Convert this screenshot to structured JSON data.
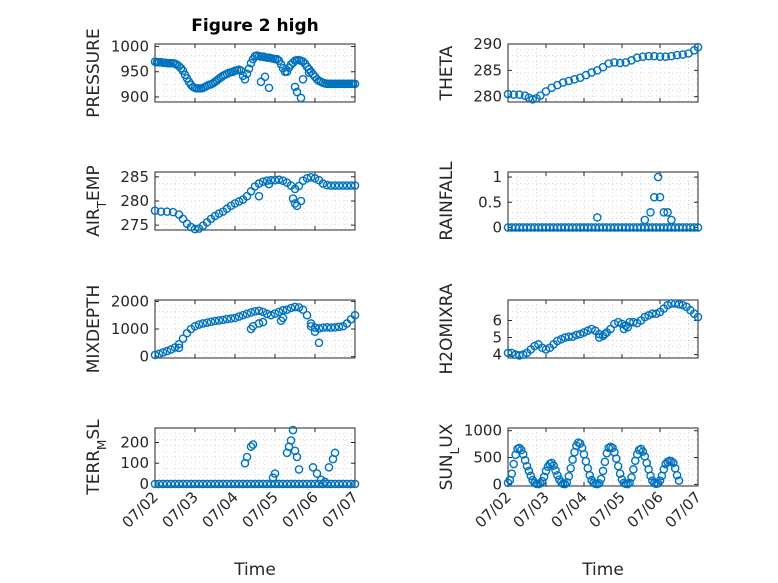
{
  "figure": {
    "title": "Figure 2 high",
    "xlabel": "Time"
  },
  "chart_data": [
    {
      "type": "scatter",
      "ylabel_main": "PRESSURE",
      "ylabel_sub": "",
      "ylim": [
        890,
        1005
      ],
      "yticks": [
        900,
        950,
        1000
      ],
      "x": [
        0.0,
        0.05,
        0.1,
        0.15,
        0.2,
        0.25,
        0.3,
        0.35,
        0.4,
        0.45,
        0.5,
        0.55,
        0.6,
        0.65,
        0.7,
        0.75,
        0.8,
        0.85,
        0.9,
        0.95,
        1.0,
        1.05,
        1.1,
        1.15,
        1.2,
        1.25,
        1.3,
        1.35,
        1.4,
        1.45,
        1.5,
        1.55,
        1.6,
        1.65,
        1.7,
        1.75,
        1.8,
        1.85,
        1.9,
        1.95,
        2.0,
        2.05,
        2.1,
        2.15,
        2.2,
        2.25,
        2.3,
        2.35,
        2.4,
        2.45,
        2.5,
        2.55,
        2.6,
        2.65,
        2.7,
        2.75,
        2.8,
        2.85,
        2.9,
        2.95,
        3.0,
        3.05,
        3.1,
        3.15,
        3.2,
        3.25,
        3.3,
        3.35,
        3.4,
        3.45,
        3.5,
        3.55,
        3.6,
        3.65,
        3.7,
        3.75,
        3.8,
        3.85,
        3.9,
        3.95,
        4.0,
        4.05,
        4.1,
        4.15,
        4.2,
        4.25,
        4.3,
        4.35,
        4.4,
        4.45,
        4.5,
        4.55,
        4.6,
        4.65,
        4.7,
        4.75,
        4.8,
        4.85,
        4.9,
        4.95,
        5.0
      ],
      "y": [
        970,
        969,
        969,
        969,
        968,
        968,
        967,
        967,
        967,
        967,
        966,
        964,
        961,
        957,
        952,
        944,
        937,
        930,
        924,
        920,
        918,
        917,
        917,
        917,
        918,
        920,
        922,
        924,
        925,
        927,
        930,
        933,
        936,
        939,
        942,
        944,
        946,
        948,
        949,
        950,
        952,
        953,
        954,
        952,
        942,
        935,
        946,
        956,
        967,
        975,
        981,
        982,
        981,
        980,
        980,
        979,
        978,
        978,
        977,
        976,
        975,
        975,
        972,
        965,
        957,
        950,
        950,
        958,
        964,
        968,
        972,
        973,
        973,
        972,
        970,
        966,
        960,
        955,
        950,
        945,
        940,
        935,
        932,
        930,
        928,
        927,
        926,
        926,
        926,
        926,
        926,
        926,
        926,
        926,
        926,
        926,
        926,
        926,
        926,
        926,
        926
      ],
      "x_extra": [
        2.65,
        2.75,
        2.85,
        3.5,
        3.55,
        3.65,
        3.7,
        3.85
      ],
      "y_extra": [
        930,
        940,
        918,
        920,
        910,
        898,
        935,
        948
      ]
    },
    {
      "type": "scatter",
      "ylabel_main": "THETA",
      "ylabel_sub": "",
      "ylim": [
        279,
        290
      ],
      "yticks": [
        280,
        285,
        290
      ],
      "x": [
        0.0,
        0.15,
        0.3,
        0.45,
        0.55,
        0.65,
        0.75,
        0.85,
        1.0,
        1.15,
        1.3,
        1.45,
        1.6,
        1.75,
        1.9,
        2.05,
        2.2,
        2.35,
        2.5,
        2.65,
        2.8,
        2.95,
        3.1,
        3.25,
        3.4,
        3.55,
        3.7,
        3.85,
        4.0,
        4.15,
        4.3,
        4.45,
        4.6,
        4.75,
        4.9,
        5.0
      ],
      "y": [
        280.5,
        280.4,
        280.4,
        280.2,
        279.8,
        279.5,
        279.7,
        280.2,
        281.0,
        281.7,
        282.2,
        282.7,
        283.0,
        283.3,
        283.6,
        284.1,
        284.6,
        285.0,
        285.6,
        286.3,
        286.5,
        286.4,
        286.5,
        286.9,
        287.4,
        287.6,
        287.7,
        287.7,
        287.6,
        287.6,
        287.7,
        287.9,
        288.0,
        288.2,
        288.8,
        289.4
      ],
      "x_extra": [],
      "y_extra": []
    },
    {
      "type": "scatter",
      "ylabel_main": "AIR",
      "ylabel_sub": "TEMP",
      "ylim": [
        274,
        286
      ],
      "yticks": [
        275,
        280,
        285
      ],
      "x": [
        0.0,
        0.15,
        0.3,
        0.45,
        0.6,
        0.7,
        0.8,
        0.9,
        1.0,
        1.1,
        1.2,
        1.3,
        1.4,
        1.5,
        1.6,
        1.7,
        1.8,
        1.9,
        2.0,
        2.1,
        2.2,
        2.3,
        2.4,
        2.5,
        2.6,
        2.7,
        2.8,
        2.9,
        3.0,
        3.1,
        3.2,
        3.3,
        3.4,
        3.5,
        3.6,
        3.7,
        3.8,
        3.9,
        4.0,
        4.1,
        4.2,
        4.3,
        4.4,
        4.5,
        4.6,
        4.7,
        4.8,
        4.9,
        5.0
      ],
      "y": [
        278,
        277.8,
        277.8,
        277.7,
        277.2,
        276.3,
        275.3,
        274.6,
        274.2,
        274.3,
        274.9,
        275.6,
        276.3,
        276.9,
        277.4,
        277.8,
        278.4,
        279,
        279.5,
        279.9,
        280.3,
        281,
        282,
        283,
        283.6,
        284,
        284.2,
        284.3,
        284.3,
        284.4,
        284.2,
        283.8,
        283.2,
        282.5,
        283.1,
        284.2,
        284.7,
        284.9,
        284.7,
        284.3,
        283.6,
        283.3,
        283.2,
        283.2,
        283.2,
        283.2,
        283.2,
        283.2,
        283.2
      ],
      "x_extra": [
        2.6,
        2.85,
        3.45,
        3.5,
        3.55,
        3.65
      ],
      "y_extra": [
        281,
        283.5,
        280.5,
        279.5,
        279,
        280
      ],
      "ylabel_pre": "AIR",
      "ylabel_post": "EMP",
      "ylabel_subscript": "T"
    },
    {
      "type": "scatter",
      "ylabel_main": "RAINFALL",
      "ylabel_sub": "",
      "ylim": [
        -0.05,
        1.1
      ],
      "yticks": [
        0,
        0.5,
        1
      ],
      "x": [
        0.0,
        0.1,
        0.2,
        0.3,
        0.4,
        0.5,
        0.6,
        0.7,
        0.8,
        0.9,
        1.0,
        1.1,
        1.2,
        1.3,
        1.4,
        1.5,
        1.6,
        1.7,
        1.8,
        1.9,
        2.0,
        2.1,
        2.2,
        2.3,
        2.4,
        2.5,
        2.6,
        2.7,
        2.8,
        2.9,
        3.0,
        3.1,
        3.2,
        3.3,
        3.4,
        3.5,
        3.6,
        3.7,
        3.8,
        3.9,
        4.0,
        4.1,
        4.2,
        4.3,
        4.4,
        4.5,
        4.6,
        4.7,
        4.8,
        4.9,
        5.0
      ],
      "y": [
        0,
        0,
        0,
        0,
        0,
        0,
        0,
        0,
        0,
        0,
        0,
        0,
        0,
        0,
        0,
        0,
        0,
        0,
        0,
        0,
        0,
        0,
        0,
        0,
        0,
        0,
        0,
        0,
        0,
        0,
        0,
        0,
        0,
        0,
        0,
        0,
        0,
        0,
        0,
        0,
        0,
        0,
        0,
        0,
        0,
        0,
        0,
        0,
        0,
        0,
        0
      ],
      "x_extra": [
        2.35,
        3.6,
        3.75,
        3.85,
        3.95,
        4.0,
        4.1,
        4.2,
        4.3
      ],
      "y_extra": [
        0.2,
        0.15,
        0.3,
        0.6,
        1.0,
        0.6,
        0.3,
        0.3,
        0.15
      ]
    },
    {
      "type": "scatter",
      "ylabel_main": "MIXDEPTH",
      "ylabel_sub": "",
      "ylim": [
        -50,
        2050
      ],
      "yticks": [
        0,
        1000,
        2000
      ],
      "x": [
        0.0,
        0.1,
        0.2,
        0.3,
        0.4,
        0.5,
        0.6,
        0.7,
        0.8,
        0.9,
        1.0,
        1.1,
        1.2,
        1.3,
        1.4,
        1.5,
        1.6,
        1.7,
        1.8,
        1.9,
        2.0,
        2.1,
        2.2,
        2.3,
        2.4,
        2.5,
        2.6,
        2.7,
        2.8,
        2.9,
        3.0,
        3.1,
        3.2,
        3.3,
        3.4,
        3.5,
        3.6,
        3.7,
        3.8,
        3.9,
        4.0,
        4.1,
        4.2,
        4.3,
        4.4,
        4.5,
        4.6,
        4.7,
        4.8,
        4.9,
        5.0
      ],
      "y": [
        60,
        100,
        150,
        200,
        260,
        330,
        450,
        650,
        850,
        1000,
        1100,
        1160,
        1200,
        1230,
        1260,
        1290,
        1310,
        1330,
        1360,
        1380,
        1400,
        1450,
        1500,
        1550,
        1600,
        1640,
        1660,
        1620,
        1550,
        1500,
        1560,
        1620,
        1680,
        1700,
        1760,
        1800,
        1780,
        1700,
        1500,
        1200,
        1050,
        1020,
        1050,
        1060,
        1050,
        1060,
        1080,
        1100,
        1200,
        1350,
        1500
      ],
      "x_extra": [
        0.6,
        2.4,
        2.45,
        2.6,
        2.7,
        3.15,
        3.2,
        3.9,
        4.0,
        4.1
      ],
      "y_extra": [
        320,
        1000,
        1100,
        1200,
        1250,
        1300,
        1400,
        1100,
        900,
        500
      ]
    },
    {
      "type": "scatter",
      "ylabel_main": "H2OMIXRA",
      "ylabel_sub": "",
      "ylim": [
        3.8,
        7.2
      ],
      "yticks": [
        4,
        5,
        6
      ],
      "x": [
        0.0,
        0.1,
        0.2,
        0.3,
        0.4,
        0.5,
        0.6,
        0.7,
        0.8,
        0.9,
        1.0,
        1.1,
        1.2,
        1.3,
        1.4,
        1.5,
        1.6,
        1.7,
        1.8,
        1.9,
        2.0,
        2.1,
        2.2,
        2.3,
        2.4,
        2.5,
        2.6,
        2.7,
        2.8,
        2.9,
        3.0,
        3.1,
        3.2,
        3.3,
        3.4,
        3.5,
        3.6,
        3.7,
        3.8,
        3.9,
        4.0,
        4.1,
        4.2,
        4.3,
        4.4,
        4.5,
        4.6,
        4.7,
        4.8,
        4.9,
        5.0
      ],
      "y": [
        4.1,
        4.1,
        4.0,
        3.95,
        4.0,
        4.1,
        4.3,
        4.5,
        4.6,
        4.4,
        4.3,
        4.4,
        4.6,
        4.8,
        4.9,
        5.0,
        5.05,
        5.05,
        5.15,
        5.2,
        5.3,
        5.4,
        5.5,
        5.4,
        5.2,
        5.1,
        5.3,
        5.5,
        5.8,
        5.9,
        5.8,
        5.7,
        5.9,
        5.9,
        5.85,
        6.0,
        6.2,
        6.3,
        6.4,
        6.4,
        6.5,
        6.7,
        6.9,
        7.0,
        7.0,
        6.95,
        6.9,
        6.8,
        6.6,
        6.4,
        6.2
      ],
      "x_extra": [
        2.4,
        2.55,
        3.05,
        3.15
      ],
      "y_extra": [
        5.0,
        5.2,
        5.5,
        5.6
      ]
    },
    {
      "type": "scatter",
      "ylabel_main": "TERR",
      "ylabel_sub": "SL",
      "ylim": [
        -10,
        270
      ],
      "yticks": [
        0,
        100,
        200
      ],
      "x": [
        0.0,
        0.1,
        0.2,
        0.3,
        0.4,
        0.5,
        0.6,
        0.7,
        0.8,
        0.9,
        1.0,
        1.1,
        1.2,
        1.3,
        1.4,
        1.5,
        1.6,
        1.7,
        1.8,
        1.9,
        2.0,
        2.1,
        2.2,
        2.3,
        2.4,
        2.5,
        2.6,
        2.7,
        2.8,
        2.9,
        3.0,
        3.1,
        3.2,
        3.3,
        3.4,
        3.5,
        3.6,
        3.7,
        3.8,
        3.9,
        4.0,
        4.1,
        4.2,
        4.3,
        4.4,
        4.5,
        4.6,
        4.7,
        4.8,
        4.9,
        5.0
      ],
      "y": [
        0,
        0,
        0,
        0,
        0,
        0,
        0,
        0,
        0,
        0,
        0,
        0,
        0,
        0,
        0,
        0,
        0,
        0,
        0,
        0,
        0,
        0,
        0,
        0,
        0,
        0,
        0,
        0,
        0,
        0,
        0,
        0,
        0,
        0,
        0,
        0,
        0,
        0,
        0,
        0,
        0,
        0,
        0,
        0,
        0,
        0,
        0,
        0,
        0,
        0,
        0
      ],
      "x_extra": [
        2.25,
        2.3,
        2.4,
        2.45,
        2.95,
        3.0,
        3.3,
        3.35,
        3.4,
        3.45,
        3.5,
        3.55,
        3.6,
        3.95,
        4.05,
        4.15,
        4.25,
        4.35,
        4.45,
        4.5
      ],
      "y_extra": [
        100,
        130,
        180,
        190,
        30,
        50,
        150,
        180,
        210,
        260,
        160,
        130,
        70,
        80,
        50,
        20,
        10,
        80,
        120,
        150
      ],
      "ylabel_pre": "TERR",
      "ylabel_post": "SL",
      "ylabel_subscript": "M"
    },
    {
      "type": "scatter",
      "ylabel_main": "SUN",
      "ylabel_sub": "LUX",
      "ylim": [
        -30,
        1050
      ],
      "yticks": [
        0,
        500,
        1000
      ],
      "x": [
        0.0,
        0.05,
        0.1,
        0.15,
        0.2,
        0.25,
        0.3,
        0.35,
        0.4,
        0.45,
        0.5,
        0.55,
        0.6,
        0.65,
        0.7,
        0.75,
        0.8,
        0.85,
        0.9,
        0.95,
        1.0,
        1.05,
        1.1,
        1.15,
        1.2,
        1.25,
        1.3,
        1.35,
        1.4,
        1.45,
        1.5,
        1.55,
        1.6,
        1.65,
        1.7,
        1.75,
        1.8,
        1.85,
        1.9,
        1.95,
        2.0,
        2.05,
        2.1,
        2.15,
        2.2,
        2.25,
        2.3,
        2.35,
        2.4,
        2.45,
        2.5,
        2.55,
        2.6,
        2.65,
        2.7,
        2.75,
        2.8,
        2.85,
        2.9,
        2.95,
        3.0,
        3.05,
        3.1,
        3.15,
        3.2,
        3.25,
        3.3,
        3.35,
        3.4,
        3.45,
        3.5,
        3.55,
        3.6,
        3.65,
        3.7,
        3.75,
        3.8,
        3.85,
        3.9,
        3.95,
        4.0,
        4.05,
        4.1,
        4.15,
        4.2,
        4.25,
        4.3,
        4.35,
        4.4,
        4.45,
        4.5
      ],
      "y": [
        30,
        80,
        200,
        380,
        550,
        660,
        680,
        640,
        560,
        450,
        340,
        250,
        160,
        80,
        30,
        10,
        5,
        20,
        60,
        140,
        250,
        330,
        380,
        400,
        350,
        260,
        170,
        90,
        40,
        10,
        5,
        40,
        150,
        300,
        460,
        600,
        720,
        780,
        760,
        680,
        560,
        430,
        300,
        170,
        80,
        30,
        10,
        5,
        20,
        100,
        250,
        420,
        580,
        680,
        700,
        680,
        600,
        480,
        340,
        200,
        90,
        30,
        10,
        5,
        30,
        130,
        280,
        440,
        560,
        640,
        660,
        610,
        520,
        400,
        280,
        160,
        70,
        25,
        10,
        20,
        70,
        160,
        280,
        380,
        420,
        440,
        430,
        400,
        300,
        170,
        70
      ],
      "x_extra": [],
      "y_extra": []
    }
  ],
  "xaxis": {
    "ticks": [
      "07/02",
      "07/03",
      "07/04",
      "07/05",
      "07/06",
      "07/07"
    ],
    "tick_positions": [
      0,
      1,
      2,
      3,
      4,
      5
    ]
  },
  "colors": {
    "marker": "#0072BD",
    "grid": "#C8C8C8",
    "axis": "#262626"
  }
}
